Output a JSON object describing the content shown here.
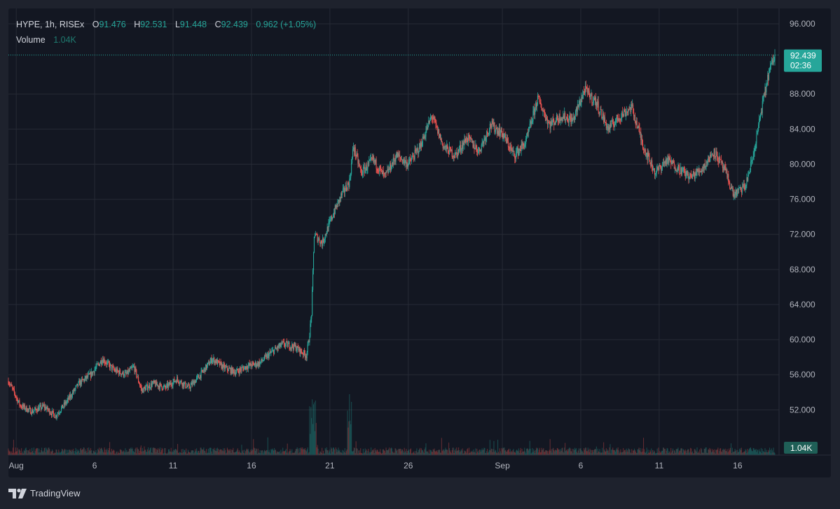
{
  "symbol": {
    "title": "HYPE, 1h, RISEx",
    "open_label": "O",
    "open": "91.476",
    "high_label": "H",
    "high": "92.531",
    "low_label": "L",
    "low": "91.448",
    "close_label": "C",
    "close": "92.439",
    "change": "0.962 (+1.05%)"
  },
  "volume": {
    "label": "Volume",
    "value": "1.04K"
  },
  "price_badge": {
    "price": "92.439",
    "countdown": "02:36"
  },
  "brand": {
    "name": "TradingView"
  },
  "colors": {
    "background": "#131722",
    "frame": "#1e222d",
    "up": "#26a69a",
    "down": "#ef5350",
    "grid": "#262a35",
    "text": "#b2b5be"
  },
  "chart_data": {
    "type": "candlestick",
    "interval": "1h",
    "ylim": [
      48,
      97
    ],
    "y_ticks": [
      "96.000",
      "88.000",
      "84.000",
      "80.000",
      "76.000",
      "72.000",
      "68.000",
      "64.000",
      "60.000",
      "56.000",
      "52.000"
    ],
    "x_ticks": [
      {
        "label": "Aug",
        "date": "2025-08-01"
      },
      {
        "label": "6",
        "date": "2025-08-06"
      },
      {
        "label": "11",
        "date": "2025-08-11"
      },
      {
        "label": "16",
        "date": "2025-08-16"
      },
      {
        "label": "21",
        "date": "2025-08-21"
      },
      {
        "label": "26",
        "date": "2025-08-26"
      },
      {
        "label": "Sep",
        "date": "2025-09-01"
      },
      {
        "label": "6",
        "date": "2025-09-06"
      },
      {
        "label": "11",
        "date": "2025-09-11"
      },
      {
        "label": "16",
        "date": "2025-09-16"
      }
    ],
    "x_range": [
      "2025-07-31T12:00",
      "2025-09-18T09:00"
    ],
    "last_price": 92.439,
    "close_path": [
      [
        "2025-07-31T12:00",
        55.3
      ],
      [
        "2025-08-01T06:00",
        52.5
      ],
      [
        "2025-08-02T00:00",
        51.8
      ],
      [
        "2025-08-02T18:00",
        52.4
      ],
      [
        "2025-08-03T12:00",
        51.3
      ],
      [
        "2025-08-04T06:00",
        53.0
      ],
      [
        "2025-08-05T00:00",
        55.0
      ],
      [
        "2025-08-05T18:00",
        56.0
      ],
      [
        "2025-08-06T12:00",
        57.8
      ],
      [
        "2025-08-07T06:00",
        56.5
      ],
      [
        "2025-08-08T00:00",
        56.0
      ],
      [
        "2025-08-08T12:00",
        56.9
      ],
      [
        "2025-08-09T00:00",
        54.2
      ],
      [
        "2025-08-09T18:00",
        55.0
      ],
      [
        "2025-08-10T12:00",
        54.5
      ],
      [
        "2025-08-11T06:00",
        55.5
      ],
      [
        "2025-08-12T00:00",
        54.5
      ],
      [
        "2025-08-12T18:00",
        56.0
      ],
      [
        "2025-08-13T12:00",
        57.8
      ],
      [
        "2025-08-14T06:00",
        56.8
      ],
      [
        "2025-08-15T00:00",
        56.3
      ],
      [
        "2025-08-15T18:00",
        57.0
      ],
      [
        "2025-08-16T12:00",
        57.3
      ],
      [
        "2025-08-17T06:00",
        58.5
      ],
      [
        "2025-08-18T00:00",
        59.5
      ],
      [
        "2025-08-18T18:00",
        59.2
      ],
      [
        "2025-08-19T12:00",
        58.2
      ],
      [
        "2025-08-19T16:00",
        60.0
      ],
      [
        "2025-08-19T20:00",
        63.0
      ],
      [
        "2025-08-20T00:00",
        72.0
      ],
      [
        "2025-08-20T12:00",
        71.0
      ],
      [
        "2025-08-21T06:00",
        74.5
      ],
      [
        "2025-08-21T18:00",
        76.5
      ],
      [
        "2025-08-22T06:00",
        78.0
      ],
      [
        "2025-08-22T12:00",
        82.0
      ],
      [
        "2025-08-23T00:00",
        79.0
      ],
      [
        "2025-08-23T18:00",
        80.5
      ],
      [
        "2025-08-24T12:00",
        78.5
      ],
      [
        "2025-08-25T06:00",
        81.0
      ],
      [
        "2025-08-26T00:00",
        80.0
      ],
      [
        "2025-08-26T18:00",
        82.0
      ],
      [
        "2025-08-27T12:00",
        85.5
      ],
      [
        "2025-08-28T06:00",
        82.0
      ],
      [
        "2025-08-29T00:00",
        81.0
      ],
      [
        "2025-08-29T18:00",
        83.0
      ],
      [
        "2025-08-30T12:00",
        81.5
      ],
      [
        "2025-08-31T06:00",
        84.5
      ],
      [
        "2025-09-01T00:00",
        83.5
      ],
      [
        "2025-09-01T18:00",
        81.0
      ],
      [
        "2025-09-02T12:00",
        82.5
      ],
      [
        "2025-09-03T06:00",
        87.5
      ],
      [
        "2025-09-04T00:00",
        84.5
      ],
      [
        "2025-09-04T18:00",
        85.5
      ],
      [
        "2025-09-05T12:00",
        85.0
      ],
      [
        "2025-09-06T06:00",
        88.5
      ],
      [
        "2025-09-07T00:00",
        87.0
      ],
      [
        "2025-09-07T18:00",
        84.0
      ],
      [
        "2025-09-08T12:00",
        85.5
      ],
      [
        "2025-09-09T06:00",
        86.5
      ],
      [
        "2025-09-10T00:00",
        82.0
      ],
      [
        "2025-09-10T18:00",
        79.0
      ],
      [
        "2025-09-11T12:00",
        80.5
      ],
      [
        "2025-09-12T06:00",
        79.5
      ],
      [
        "2025-09-13T00:00",
        78.5
      ],
      [
        "2025-09-13T18:00",
        79.5
      ],
      [
        "2025-09-14T12:00",
        81.5
      ],
      [
        "2025-09-15T06:00",
        79.0
      ],
      [
        "2025-09-15T18:00",
        76.5
      ],
      [
        "2025-09-16T12:00",
        77.5
      ],
      [
        "2025-09-17T00:00",
        81.0
      ],
      [
        "2025-09-17T12:00",
        86.0
      ],
      [
        "2025-09-18T00:00",
        90.5
      ],
      [
        "2025-09-18T09:00",
        92.439
      ]
    ]
  }
}
